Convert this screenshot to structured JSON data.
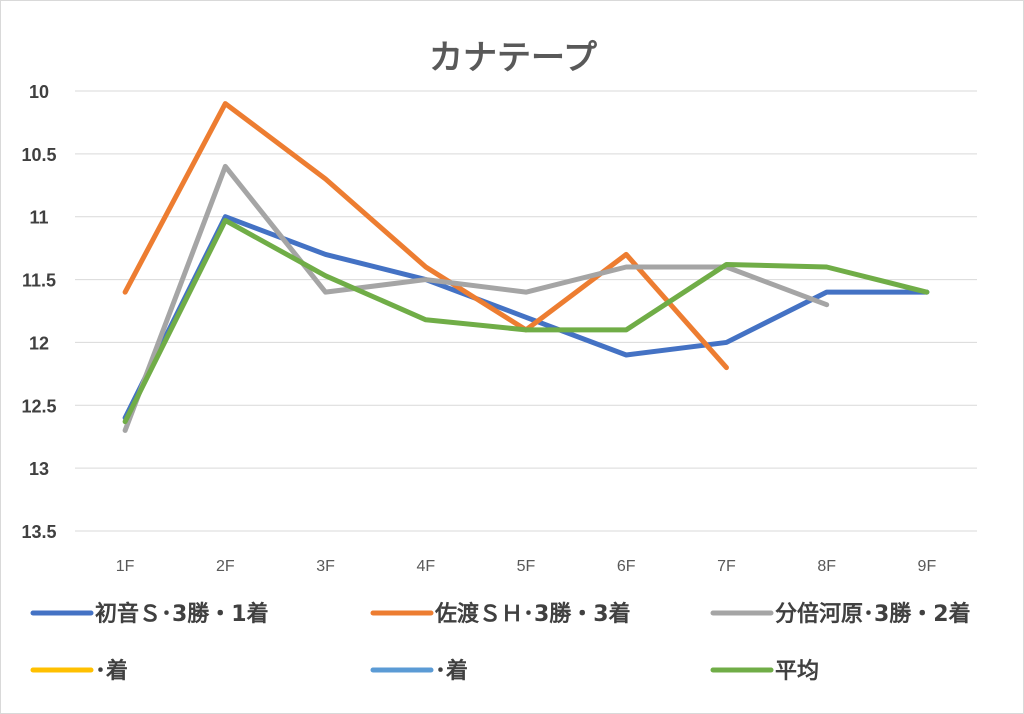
{
  "chart_data": {
    "type": "line",
    "title": "カナテープ",
    "categories": [
      "1F",
      "2F",
      "3F",
      "4F",
      "5F",
      "6F",
      "7F",
      "8F",
      "9F"
    ],
    "y_ticks": [
      "10",
      "10.5",
      "11",
      "11.5",
      "12",
      "12.5",
      "13",
      "13.5"
    ],
    "ylim": [
      10,
      13.5
    ],
    "y_reversed": true,
    "grid": true,
    "legend_position": "bottom",
    "series": [
      {
        "name": "初音Ｓ･3勝・1着",
        "color": "#4472C4",
        "values": [
          12.6,
          11.0,
          11.3,
          11.5,
          11.8,
          12.1,
          12.0,
          11.6,
          11.6
        ]
      },
      {
        "name": "佐渡ＳＨ･3勝・3着",
        "color": "#ED7D31",
        "values": [
          11.6,
          10.1,
          10.7,
          11.4,
          11.9,
          11.3,
          12.2,
          null,
          null
        ]
      },
      {
        "name": "分倍河原･3勝・2着",
        "color": "#A5A5A5",
        "values": [
          12.7,
          10.6,
          11.6,
          11.5,
          11.6,
          11.4,
          11.4,
          11.7,
          null
        ]
      },
      {
        "name": "･着",
        "color": "#FFC000",
        "values": [
          null,
          null,
          null,
          null,
          null,
          null,
          null,
          null,
          null
        ]
      },
      {
        "name": "･着",
        "color": "#5B9BD5",
        "values": [
          null,
          null,
          null,
          null,
          null,
          null,
          null,
          null,
          null
        ]
      },
      {
        "name": "平均",
        "color": "#70AD47",
        "values": [
          12.63,
          11.03,
          11.47,
          11.82,
          11.9,
          11.9,
          11.38,
          11.4,
          11.6
        ]
      }
    ]
  }
}
